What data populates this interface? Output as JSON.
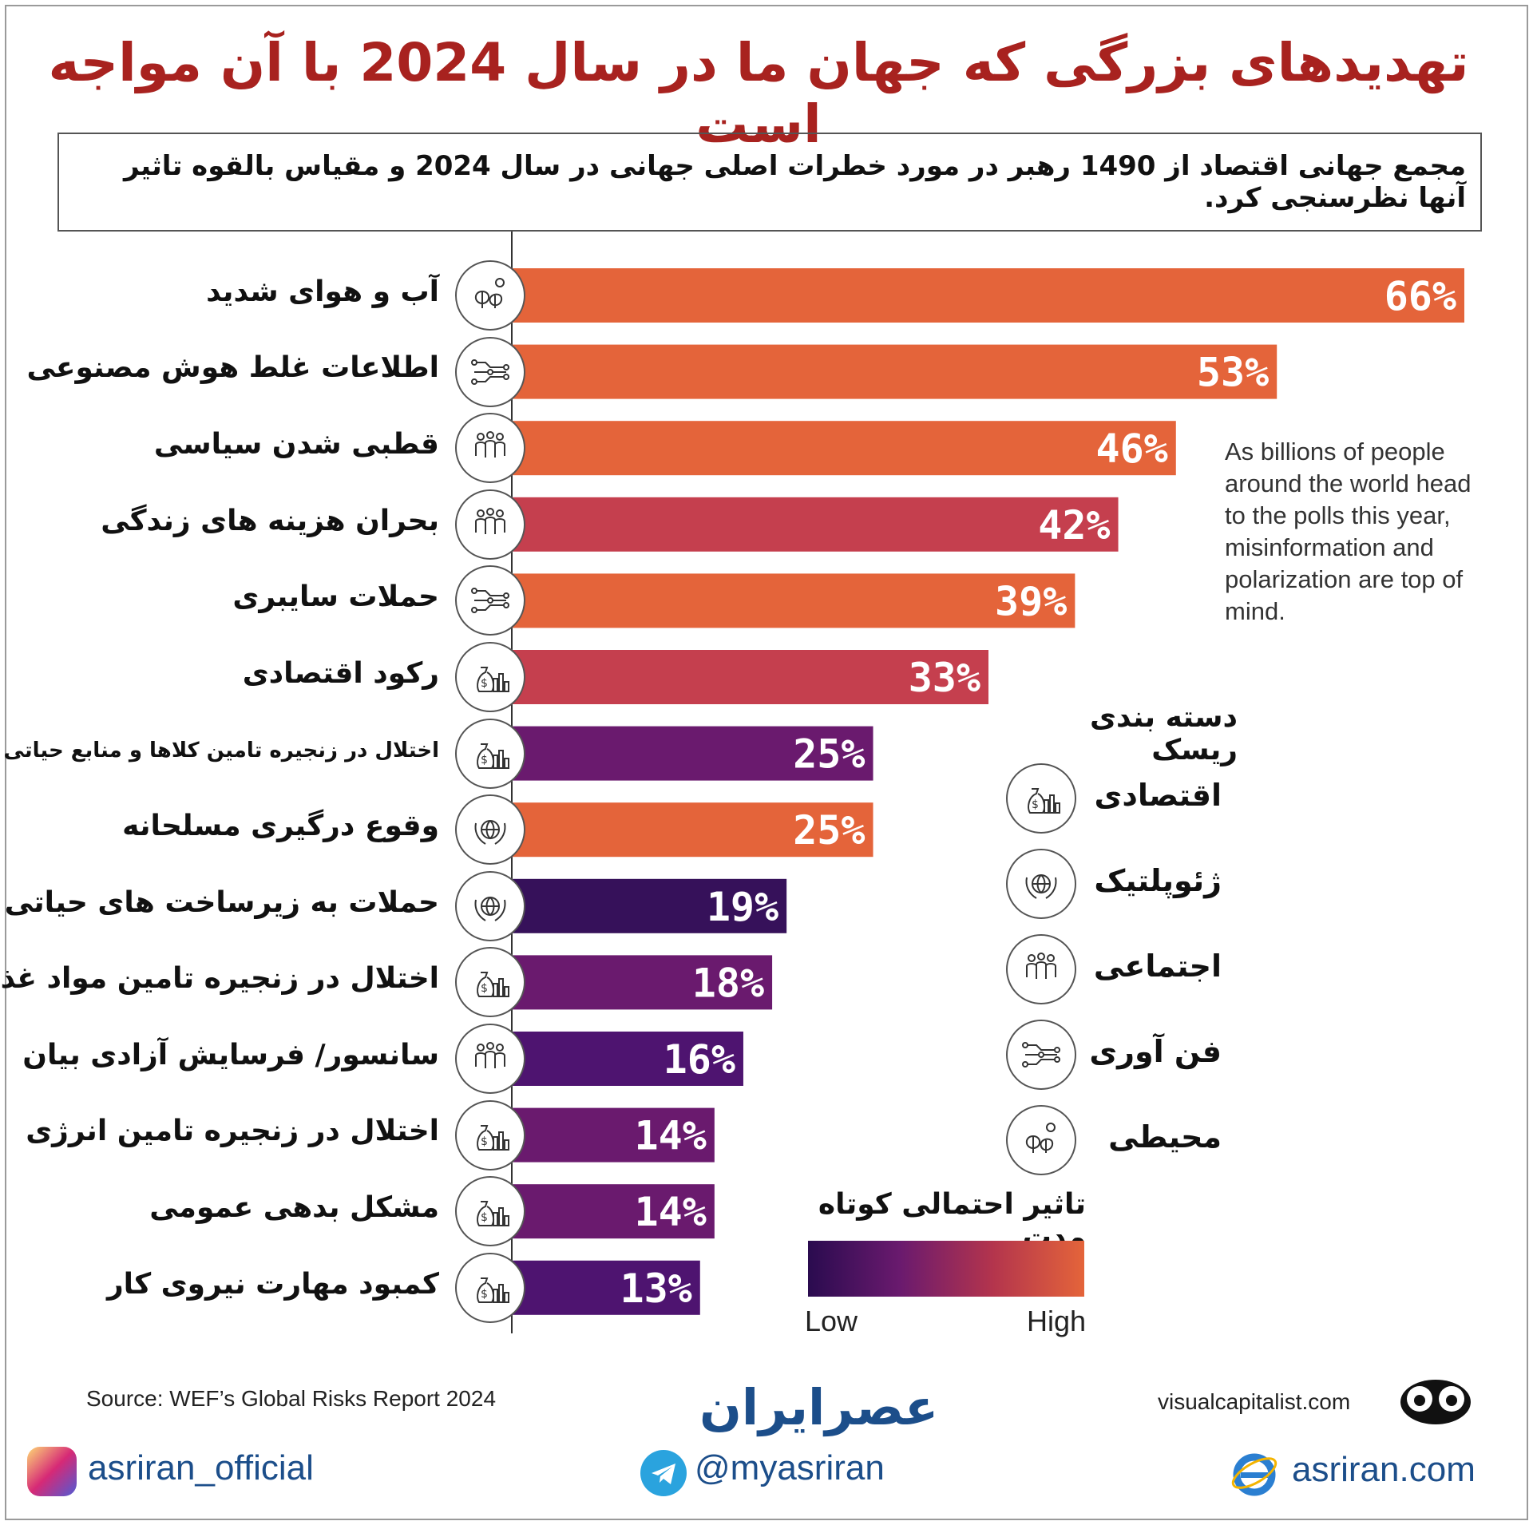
{
  "title": "تهدیدهای بزرگی که جهان ما در سال 2024 با آن مواجه است",
  "subtitle": "مجمع جهانی اقتصاد از 1490 رهبر در مورد خطرات اصلی جهانی در سال 2024 و مقیاس بالقوه تاثیر آنها نظرسنجی کرد.",
  "note": "As billions of people around the world head to the polls this year, misinformation and polarization are top of mind.",
  "chart_data": {
    "type": "bar",
    "orientation": "horizontal",
    "categories": [
      "آب و هوای شدید",
      "اطلاعات غلط هوش مصنوعی",
      "قطبی شدن سیاسی",
      "بحران هزینه های زندگی",
      "حملات سایبری",
      "رکود اقتصادی",
      "اختلال در زنجیره تامین کلاها و منابع حیاتی",
      "وقوع درگیری مسلحانه",
      "حملات به زیرساخت های حیاتی",
      "اختلال در زنجیره تامین مواد غذایی",
      "سانسور/ فرسایش آزادی بیان",
      "اختلال در زنجیره تامین انرژی",
      "مشکل بدهی عمومی",
      "کمبود مهارت نیروی کار"
    ],
    "values": [
      66,
      53,
      46,
      42,
      39,
      33,
      25,
      25,
      19,
      18,
      16,
      14,
      14,
      13
    ],
    "value_labels": [
      "66%",
      "53%",
      "46%",
      "42%",
      "39%",
      "33%",
      "25%",
      "25%",
      "19%",
      "18%",
      "16%",
      "14%",
      "14%",
      "13%"
    ],
    "risk_category": [
      "environmental",
      "technological",
      "societal",
      "societal",
      "technological",
      "economic",
      "economic",
      "geopolitical",
      "geopolitical",
      "economic",
      "societal",
      "economic",
      "economic",
      "economic"
    ],
    "bar_colors": [
      "#e4643a",
      "#e4643a",
      "#e4643a",
      "#c53f4e",
      "#e4643a",
      "#c53f4e",
      "#6a1a6e",
      "#e4643a",
      "#36115a",
      "#6a1a6e",
      "#4e1470",
      "#6a1a6e",
      "#6a1a6e",
      "#4e1470"
    ],
    "xlim": [
      0,
      66
    ]
  },
  "legend": {
    "title": "دسته بندی ریسک",
    "items": [
      {
        "label": "اقتصادی",
        "icon": "money-bag-chart-icon"
      },
      {
        "label": "ژئوپلتیک",
        "icon": "globe-laurel-icon"
      },
      {
        "label": "اجتماعی",
        "icon": "people-group-icon"
      },
      {
        "label": "فن آوری",
        "icon": "circuit-icon"
      },
      {
        "label": "محیطی",
        "icon": "trees-cloud-icon"
      }
    ]
  },
  "impact_scale": {
    "title": "تاثیر احتمالی کوتاه مدت",
    "low": "Low",
    "high": "High",
    "colors": [
      "#2a0b4f",
      "#6a1a6e",
      "#b3344d",
      "#e4643a"
    ]
  },
  "footer": {
    "source": "Source: WEF’s Global Risks Report 2024",
    "site": "visualcapitalist.com",
    "brand": "عصرایران",
    "instagram": "asriran_official",
    "telegram": "@myasriran",
    "website": "asriran.com"
  }
}
